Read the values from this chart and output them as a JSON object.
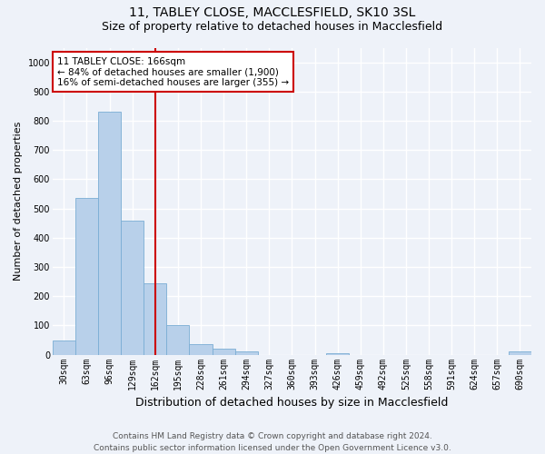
{
  "title1": "11, TABLEY CLOSE, MACCLESFIELD, SK10 3SL",
  "title2": "Size of property relative to detached houses in Macclesfield",
  "xlabel": "Distribution of detached houses by size in Macclesfield",
  "ylabel": "Number of detached properties",
  "bar_labels": [
    "30sqm",
    "63sqm",
    "96sqm",
    "129sqm",
    "162sqm",
    "195sqm",
    "228sqm",
    "261sqm",
    "294sqm",
    "327sqm",
    "360sqm",
    "393sqm",
    "426sqm",
    "459sqm",
    "492sqm",
    "525sqm",
    "558sqm",
    "591sqm",
    "624sqm",
    "657sqm",
    "690sqm"
  ],
  "bar_values": [
    50,
    535,
    830,
    460,
    245,
    100,
    35,
    20,
    10,
    0,
    0,
    0,
    5,
    0,
    0,
    0,
    0,
    0,
    0,
    0,
    10
  ],
  "bar_color": "#b8d0ea",
  "bar_edge_color": "#7aadd4",
  "vline_x_idx": 4,
  "vline_color": "#cc0000",
  "annotation_line1": "11 TABLEY CLOSE: 166sqm",
  "annotation_line2": "← 84% of detached houses are smaller (1,900)",
  "annotation_line3": "16% of semi-detached houses are larger (355) →",
  "annotation_box_color": "#ffffff",
  "annotation_box_edge": "#cc0000",
  "ylim": [
    0,
    1050
  ],
  "yticks": [
    0,
    100,
    200,
    300,
    400,
    500,
    600,
    700,
    800,
    900,
    1000
  ],
  "footer_line1": "Contains HM Land Registry data © Crown copyright and database right 2024.",
  "footer_line2": "Contains public sector information licensed under the Open Government Licence v3.0.",
  "bg_color": "#eef2f9",
  "grid_color": "#ffffff",
  "title1_fontsize": 10,
  "title2_fontsize": 9,
  "xlabel_fontsize": 9,
  "ylabel_fontsize": 8,
  "tick_fontsize": 7,
  "annotation_fontsize": 7.5,
  "footer_fontsize": 6.5
}
